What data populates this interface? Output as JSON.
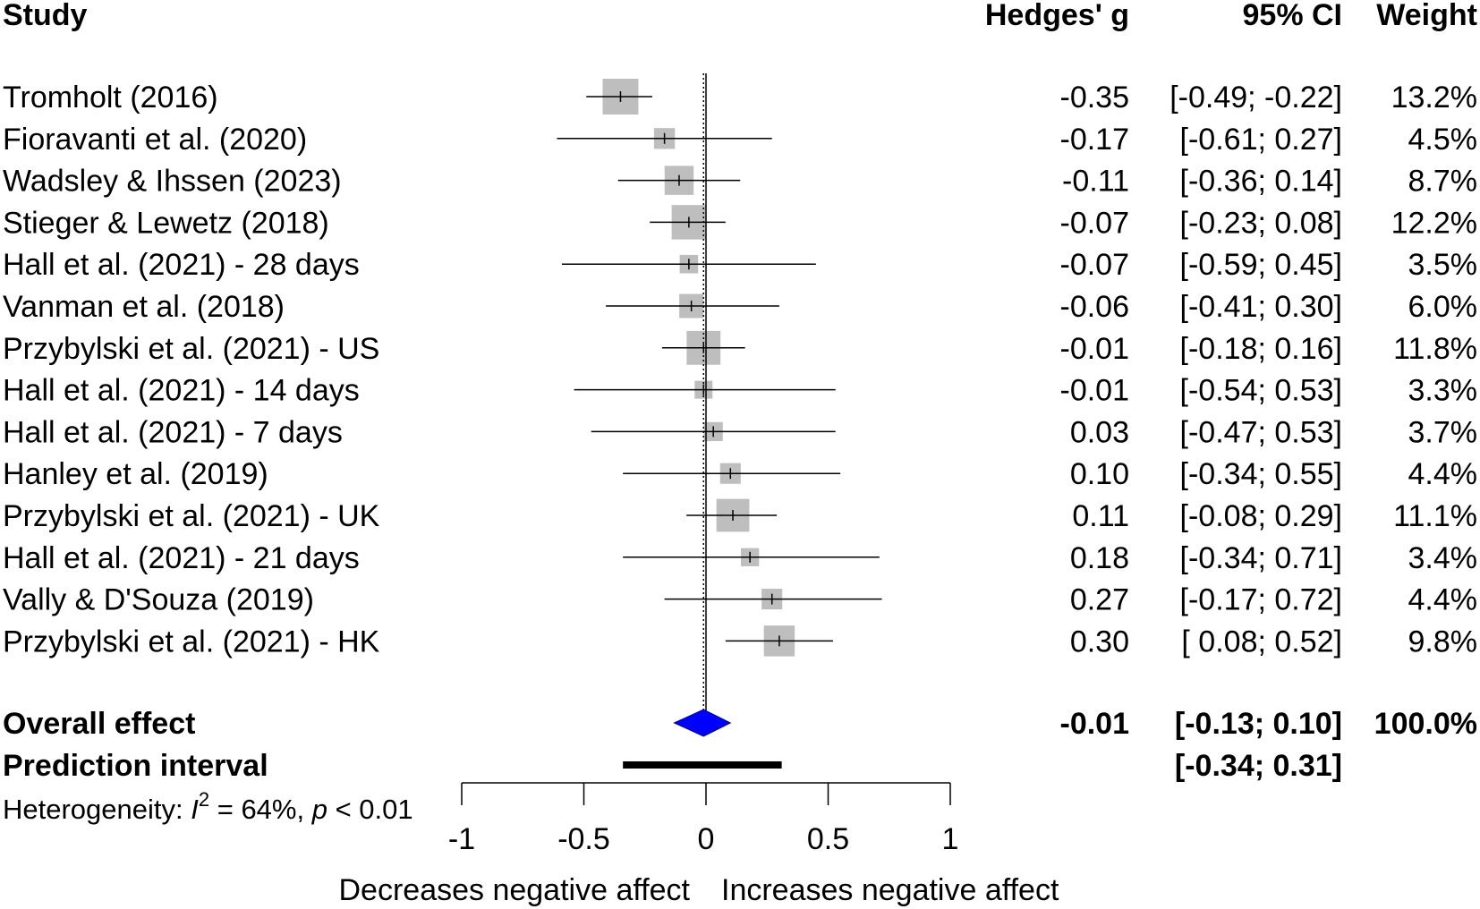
{
  "chart_data": {
    "type": "forest",
    "headers": {
      "study": "Study",
      "estimate": "Hedges' g",
      "ci": "95% CI",
      "weight": "Weight"
    },
    "studies": [
      {
        "name": "Tromholt (2016)",
        "g": -0.35,
        "lo": -0.49,
        "hi": -0.22,
        "g_label": "-0.35",
        "ci_label": "[-0.49; -0.22]",
        "weight": 13.2,
        "weight_label": "13.2%"
      },
      {
        "name": "Fioravanti et al. (2020)",
        "g": -0.17,
        "lo": -0.61,
        "hi": 0.27,
        "g_label": "-0.17",
        "ci_label": "[-0.61;  0.27]",
        "weight": 4.5,
        "weight_label": "4.5%"
      },
      {
        "name": "Wadsley & Ihssen (2023)",
        "g": -0.11,
        "lo": -0.36,
        "hi": 0.14,
        "g_label": "-0.11",
        "ci_label": "[-0.36;  0.14]",
        "weight": 8.7,
        "weight_label": "8.7%"
      },
      {
        "name": "Stieger & Lewetz (2018)",
        "g": -0.07,
        "lo": -0.23,
        "hi": 0.08,
        "g_label": "-0.07",
        "ci_label": "[-0.23;  0.08]",
        "weight": 12.2,
        "weight_label": "12.2%"
      },
      {
        "name": "Hall et al. (2021) - 28 days",
        "g": -0.07,
        "lo": -0.59,
        "hi": 0.45,
        "g_label": "-0.07",
        "ci_label": "[-0.59;  0.45]",
        "weight": 3.5,
        "weight_label": "3.5%"
      },
      {
        "name": "Vanman et al. (2018)",
        "g": -0.06,
        "lo": -0.41,
        "hi": 0.3,
        "g_label": "-0.06",
        "ci_label": "[-0.41;  0.30]",
        "weight": 6.0,
        "weight_label": "6.0%"
      },
      {
        "name": "Przybylski et al. (2021) - US",
        "g": -0.01,
        "lo": -0.18,
        "hi": 0.16,
        "g_label": "-0.01",
        "ci_label": "[-0.18;  0.16]",
        "weight": 11.8,
        "weight_label": "11.8%"
      },
      {
        "name": "Hall et al. (2021) - 14 days",
        "g": -0.01,
        "lo": -0.54,
        "hi": 0.53,
        "g_label": "-0.01",
        "ci_label": "[-0.54;  0.53]",
        "weight": 3.3,
        "weight_label": "3.3%"
      },
      {
        "name": "Hall et al. (2021) - 7 days",
        "g": 0.03,
        "lo": -0.47,
        "hi": 0.53,
        "g_label": "0.03",
        "ci_label": "[-0.47;  0.53]",
        "weight": 3.7,
        "weight_label": "3.7%"
      },
      {
        "name": "Hanley et al. (2019)",
        "g": 0.1,
        "lo": -0.34,
        "hi": 0.55,
        "g_label": "0.10",
        "ci_label": "[-0.34;  0.55]",
        "weight": 4.4,
        "weight_label": "4.4%"
      },
      {
        "name": "Przybylski et al. (2021) - UK",
        "g": 0.11,
        "lo": -0.08,
        "hi": 0.29,
        "g_label": "0.11",
        "ci_label": "[-0.08;  0.29]",
        "weight": 11.1,
        "weight_label": "11.1%"
      },
      {
        "name": "Hall et al. (2021) - 21 days",
        "g": 0.18,
        "lo": -0.34,
        "hi": 0.71,
        "g_label": "0.18",
        "ci_label": "[-0.34;  0.71]",
        "weight": 3.4,
        "weight_label": "3.4%"
      },
      {
        "name": "Vally & D'Souza (2019)",
        "g": 0.27,
        "lo": -0.17,
        "hi": 0.72,
        "g_label": "0.27",
        "ci_label": "[-0.17;  0.72]",
        "weight": 4.4,
        "weight_label": "4.4%"
      },
      {
        "name": "Przybylski et al. (2021) - HK",
        "g": 0.3,
        "lo": 0.08,
        "hi": 0.52,
        "g_label": "0.30",
        "ci_label": "[ 0.08;  0.52]",
        "weight": 9.8,
        "weight_label": "9.8%"
      }
    ],
    "overall": {
      "name": "Overall effect",
      "g": -0.01,
      "lo": -0.13,
      "hi": 0.1,
      "g_label": "-0.01",
      "ci_label": "[-0.13;  0.10]",
      "weight_label": "100.0%"
    },
    "prediction": {
      "name": "Prediction interval",
      "lo": -0.34,
      "hi": 0.31,
      "ci_label": "[-0.34;  0.31]"
    },
    "heterogeneity": {
      "prefix": "Heterogeneity: ",
      "i_symbol": "I",
      "i_sup": "2",
      "i_value": " = 64%, ",
      "p_symbol": "p",
      "p_value": " < 0.01"
    },
    "xlim": [
      -1,
      1
    ],
    "ticks": [
      -1,
      -0.5,
      0,
      0.5,
      1
    ],
    "tick_labels": [
      "-1",
      "-0.5",
      "0",
      "0.5",
      "1"
    ],
    "null_line": 0,
    "xlabel_left": "Decreases negative affect",
    "xlabel_right": "Increases negative affect",
    "colors": {
      "box": "#bebebe",
      "diamond": "#0000ff",
      "line": "#000000"
    }
  }
}
